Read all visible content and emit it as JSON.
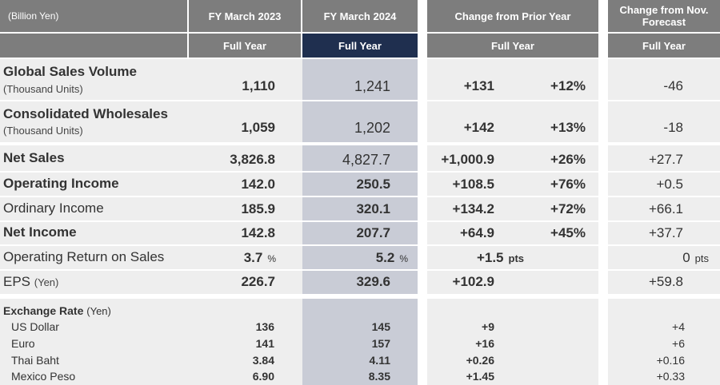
{
  "header": {
    "unit": "(Billion Yen)",
    "fy2023": "FY March 2023",
    "fy2024": "FY March 2024",
    "change_prior": "Change from Prior Year",
    "change_nov": "Change from Nov. Forecast",
    "full_year": "Full Year"
  },
  "volume": [
    {
      "label": "Global Sales Volume",
      "sub": "(Thousand Units)",
      "fy2023": "1,110",
      "fy2024": "1,241",
      "chg": "+131",
      "chg_pct": "+12%",
      "nov": "-46"
    },
    {
      "label": "Consolidated Wholesales",
      "sub": "(Thousand Units)",
      "fy2023": "1,059",
      "fy2024": "1,202",
      "chg": "+142",
      "chg_pct": "+13%",
      "nov": "-18"
    }
  ],
  "financials": [
    {
      "label": "Net Sales",
      "fy2023": "3,826.8",
      "fy2024": "4,827.7",
      "chg": "+1,000.9",
      "chg_pct": "+26%",
      "nov": "+27.7"
    },
    {
      "label": "Operating Income",
      "fy2023": "142.0",
      "fy2024": "250.5",
      "chg": "+108.5",
      "chg_pct": "+76%",
      "nov": "+0.5"
    },
    {
      "label": "Ordinary Income",
      "fy2023": "185.9",
      "fy2024": "320.1",
      "chg": "+134.2",
      "chg_pct": "+72%",
      "nov": "+66.1"
    },
    {
      "label": "Net Income",
      "fy2023": "142.8",
      "fy2024": "207.7",
      "chg": "+64.9",
      "chg_pct": "+45%",
      "nov": "+37.7"
    }
  ],
  "ros": {
    "label": "Operating Return on Sales",
    "fy2023": "3.7",
    "fy2024": "5.2",
    "unit": "%",
    "chg": "+1.5",
    "chg_unit": "pts",
    "nov": "0",
    "nov_unit": "pts"
  },
  "eps": {
    "label": "EPS",
    "unit": "(Yen)",
    "fy2023": "226.7",
    "fy2024": "329.6",
    "chg": "+102.9",
    "nov": "+59.8"
  },
  "fx": {
    "title": "Exchange Rate",
    "unit": "(Yen)",
    "rows": [
      {
        "label": "US Dollar",
        "fy2023": "136",
        "fy2024": "145",
        "chg": "+9",
        "nov": "+4"
      },
      {
        "label": "Euro",
        "fy2023": "141",
        "fy2024": "157",
        "chg": "+16",
        "nov": "+6"
      },
      {
        "label": "Thai Baht",
        "fy2023": "3.84",
        "fy2024": "4.11",
        "chg": "+0.26",
        "nov": "+0.16"
      },
      {
        "label": "Mexico Peso",
        "fy2023": "6.90",
        "fy2024": "8.35",
        "chg": "+1.45",
        "nov": "+0.33"
      }
    ]
  }
}
